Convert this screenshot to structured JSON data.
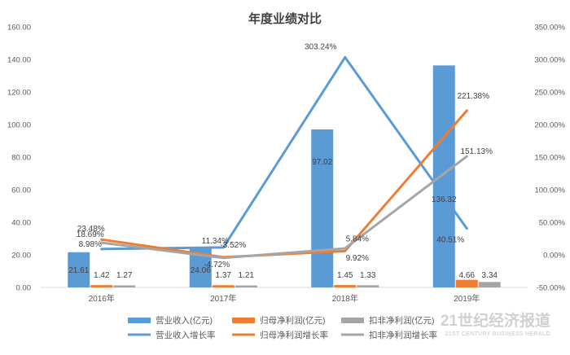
{
  "chart_data": {
    "type": "bar",
    "title": "年度业绩对比",
    "categories": [
      "2016年",
      "2017年",
      "2018年",
      "2019年"
    ],
    "ylim_left": [
      0,
      160
    ],
    "ylim_right": [
      -50,
      350
    ],
    "left_ticks": [
      "0.00",
      "20.00",
      "40.00",
      "60.00",
      "80.00",
      "100.00",
      "120.00",
      "140.00",
      "160.00"
    ],
    "right_ticks": [
      "-50.00%",
      "0.00%",
      "50.00%",
      "100.00%",
      "150.00%",
      "200.00%",
      "250.00%",
      "300.00%",
      "350.00%"
    ],
    "bar_series": [
      {
        "name": "营业收入(亿元)",
        "color": "#5b9bd5",
        "values": [
          21.61,
          24.06,
          97.02,
          136.32
        ],
        "labels": [
          "21.61",
          "24.06",
          "97.02",
          "136.32"
        ]
      },
      {
        "name": "归母净利润(亿元)",
        "color": "#ed7d31",
        "values": [
          1.42,
          1.37,
          1.45,
          4.66
        ],
        "labels": [
          "1.42",
          "1.37",
          "1.45",
          "4.66"
        ]
      },
      {
        "name": "扣非净利润(亿元)",
        "color": "#a5a5a5",
        "values": [
          1.27,
          1.21,
          1.33,
          3.34
        ],
        "labels": [
          "1.27",
          "1.21",
          "1.33",
          "3.34"
        ]
      }
    ],
    "line_series": [
      {
        "name": "营业收入增长率",
        "color": "#5b9bd5",
        "values": [
          8.98,
          11.34,
          303.24,
          40.51
        ],
        "labels": [
          "8.98%",
          "11.34%",
          "303.24%",
          "40.51%"
        ]
      },
      {
        "name": "归母净利润增长率",
        "color": "#ed7d31",
        "values": [
          23.48,
          -3.52,
          5.84,
          221.38
        ],
        "labels": [
          "23.48%",
          "-3.52%",
          "5.84%",
          "221.38%"
        ]
      },
      {
        "name": "扣非净利润增长率",
        "color": "#a5a5a5",
        "values": [
          18.69,
          -4.72,
          9.92,
          151.13
        ],
        "labels": [
          "18.69%",
          "-4.72%",
          "9.92%",
          "151.13%"
        ]
      }
    ],
    "legend_position": "bottom",
    "grid": false
  },
  "watermark": {
    "cn": "21世纪经济报道",
    "en": "21ST CENTURY BUSINESS HERALD"
  }
}
